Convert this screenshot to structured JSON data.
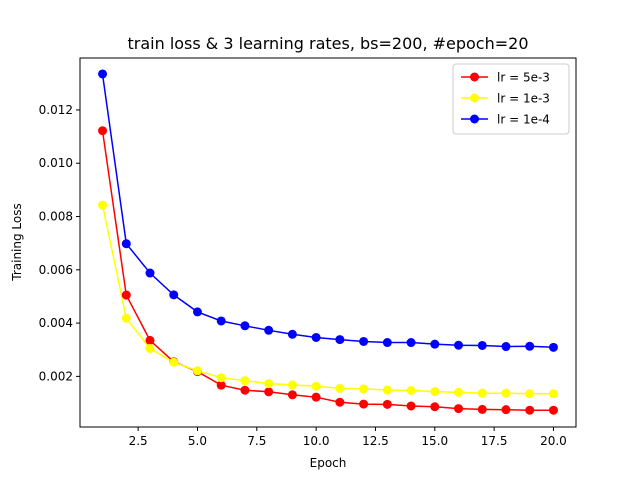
{
  "chart_data": {
    "type": "line",
    "title": "train loss & 3 learning rates, bs=200, #epoch=20",
    "xlabel": "Epoch",
    "ylabel": "Training Loss",
    "xlim": [
      0.05,
      20.95
    ],
    "ylim": [
      0.0001,
      0.01395
    ],
    "xticks": [
      2.5,
      5.0,
      7.5,
      10.0,
      12.5,
      15.0,
      17.5,
      20.0
    ],
    "xtick_labels": [
      "2.5",
      "5.0",
      "7.5",
      "10.0",
      "12.5",
      "15.0",
      "17.5",
      "20.0"
    ],
    "yticks": [
      0.002,
      0.004,
      0.006,
      0.008,
      0.01,
      0.012
    ],
    "ytick_labels": [
      "0.002",
      "0.004",
      "0.006",
      "0.008",
      "0.010",
      "0.012"
    ],
    "grid": false,
    "legend_position": "top-right",
    "x": [
      1,
      2,
      3,
      4,
      5,
      6,
      7,
      8,
      9,
      10,
      11,
      12,
      13,
      14,
      15,
      16,
      17,
      18,
      19,
      20
    ],
    "series": [
      {
        "name": "lr = 5e-3",
        "color": "#ff0000",
        "values": [
          0.01122,
          0.00505,
          0.00335,
          0.00255,
          0.00218,
          0.00167,
          0.00148,
          0.00142,
          0.00131,
          0.00122,
          0.00103,
          0.00096,
          0.00095,
          0.00089,
          0.00086,
          0.00079,
          0.00076,
          0.00075,
          0.00073,
          0.00073
        ]
      },
      {
        "name": "lr = 1e-3",
        "color": "#ffff00",
        "values": [
          0.00843,
          0.00418,
          0.00305,
          0.00253,
          0.00221,
          0.00195,
          0.00184,
          0.00173,
          0.00168,
          0.00163,
          0.00155,
          0.00153,
          0.00149,
          0.00147,
          0.00143,
          0.0014,
          0.00137,
          0.00137,
          0.00135,
          0.00135
        ]
      },
      {
        "name": "lr = 1e-4",
        "color": "#0000ff",
        "values": [
          0.01335,
          0.00698,
          0.00588,
          0.00506,
          0.00442,
          0.00408,
          0.0039,
          0.00373,
          0.00358,
          0.00346,
          0.00338,
          0.00331,
          0.00327,
          0.00327,
          0.00321,
          0.00317,
          0.00316,
          0.00312,
          0.00313,
          0.00309
        ]
      }
    ]
  }
}
